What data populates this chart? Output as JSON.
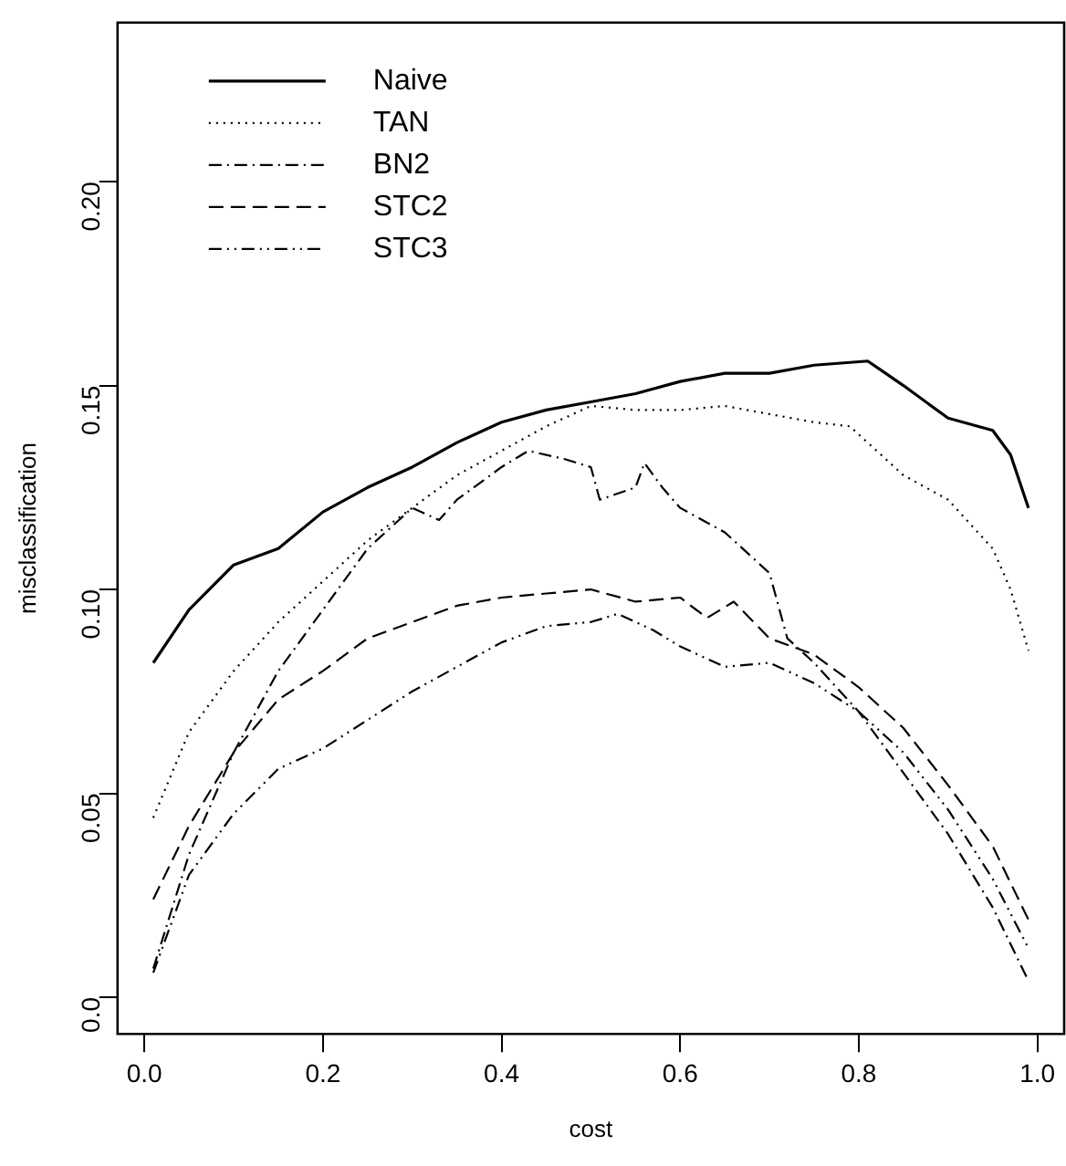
{
  "chart_data": {
    "type": "line",
    "xlabel": "cost",
    "ylabel": "misclassification",
    "xlim": [
      -0.03,
      1.03
    ],
    "ylim": [
      -0.009,
      0.239
    ],
    "xticks": [
      {
        "value": 0,
        "label": "0.0"
      },
      {
        "value": 0.2,
        "label": "0.2"
      },
      {
        "value": 0.4,
        "label": "0.4"
      },
      {
        "value": 0.6,
        "label": "0.6"
      },
      {
        "value": 0.8,
        "label": "0.8"
      },
      {
        "value": 1,
        "label": "1.0"
      }
    ],
    "yticks": [
      {
        "value": 0,
        "label": "0.0"
      },
      {
        "value": 0.05,
        "label": "0.05"
      },
      {
        "value": 0.1,
        "label": "0.10"
      },
      {
        "value": 0.15,
        "label": "0.15"
      },
      {
        "value": 0.2,
        "label": "0.20"
      }
    ],
    "grid": false,
    "legend": "top left",
    "marker": "none",
    "series": [
      {
        "name": "Naive",
        "color": "#000000",
        "line_style": "solid",
        "x": [
          0.01,
          0.05,
          0.1,
          0.15,
          0.2,
          0.25,
          0.3,
          0.35,
          0.4,
          0.45,
          0.5,
          0.55,
          0.6,
          0.65,
          0.7,
          0.75,
          0.81,
          0.83,
          0.85,
          0.9,
          0.95,
          0.97,
          0.99
        ],
        "values": [
          0.082,
          0.095,
          0.106,
          0.11,
          0.119,
          0.125,
          0.13,
          0.136,
          0.141,
          0.144,
          0.146,
          0.148,
          0.151,
          0.153,
          0.153,
          0.155,
          0.156,
          0.153,
          0.15,
          0.142,
          0.139,
          0.133,
          0.12
        ]
      },
      {
        "name": "TAN",
        "color": "#000000",
        "line_style": "dotted",
        "x": [
          0.01,
          0.05,
          0.1,
          0.15,
          0.2,
          0.25,
          0.3,
          0.35,
          0.4,
          0.45,
          0.5,
          0.55,
          0.6,
          0.65,
          0.7,
          0.75,
          0.79,
          0.85,
          0.9,
          0.95,
          0.97,
          0.99
        ],
        "values": [
          0.044,
          0.065,
          0.08,
          0.092,
          0.102,
          0.112,
          0.12,
          0.128,
          0.134,
          0.14,
          0.145,
          0.144,
          0.144,
          0.145,
          0.143,
          0.141,
          0.14,
          0.128,
          0.122,
          0.11,
          0.1,
          0.085
        ]
      },
      {
        "name": "BN2",
        "color": "#000000",
        "line_style": "dashdot",
        "x": [
          0.01,
          0.05,
          0.1,
          0.15,
          0.2,
          0.25,
          0.3,
          0.33,
          0.35,
          0.4,
          0.43,
          0.47,
          0.5,
          0.51,
          0.55,
          0.56,
          0.58,
          0.6,
          0.65,
          0.7,
          0.72,
          0.75,
          0.8,
          0.85,
          0.9,
          0.95,
          0.99
        ],
        "values": [
          0.007,
          0.035,
          0.06,
          0.08,
          0.095,
          0.11,
          0.12,
          0.117,
          0.122,
          0.13,
          0.134,
          0.132,
          0.13,
          0.122,
          0.125,
          0.131,
          0.125,
          0.12,
          0.114,
          0.104,
          0.088,
          0.082,
          0.07,
          0.055,
          0.04,
          0.022,
          0.004
        ]
      },
      {
        "name": "STC2",
        "color": "#000000",
        "line_style": "dashed",
        "x": [
          0.01,
          0.05,
          0.1,
          0.15,
          0.2,
          0.25,
          0.3,
          0.35,
          0.4,
          0.45,
          0.5,
          0.55,
          0.6,
          0.63,
          0.66,
          0.7,
          0.75,
          0.8,
          0.85,
          0.9,
          0.95,
          0.99
        ],
        "values": [
          0.024,
          0.042,
          0.06,
          0.073,
          0.08,
          0.088,
          0.092,
          0.096,
          0.098,
          0.099,
          0.1,
          0.097,
          0.098,
          0.093,
          0.097,
          0.088,
          0.084,
          0.076,
          0.066,
          0.052,
          0.037,
          0.019
        ]
      },
      {
        "name": "STC3",
        "color": "#000000",
        "line_style": "dashdotdot",
        "x": [
          0.01,
          0.05,
          0.1,
          0.15,
          0.2,
          0.25,
          0.3,
          0.35,
          0.4,
          0.45,
          0.5,
          0.53,
          0.57,
          0.6,
          0.65,
          0.7,
          0.75,
          0.8,
          0.85,
          0.9,
          0.95,
          0.99
        ],
        "values": [
          0.006,
          0.03,
          0.045,
          0.056,
          0.061,
          0.068,
          0.075,
          0.081,
          0.087,
          0.091,
          0.092,
          0.094,
          0.09,
          0.086,
          0.081,
          0.082,
          0.077,
          0.07,
          0.06,
          0.046,
          0.029,
          0.012
        ]
      }
    ]
  }
}
